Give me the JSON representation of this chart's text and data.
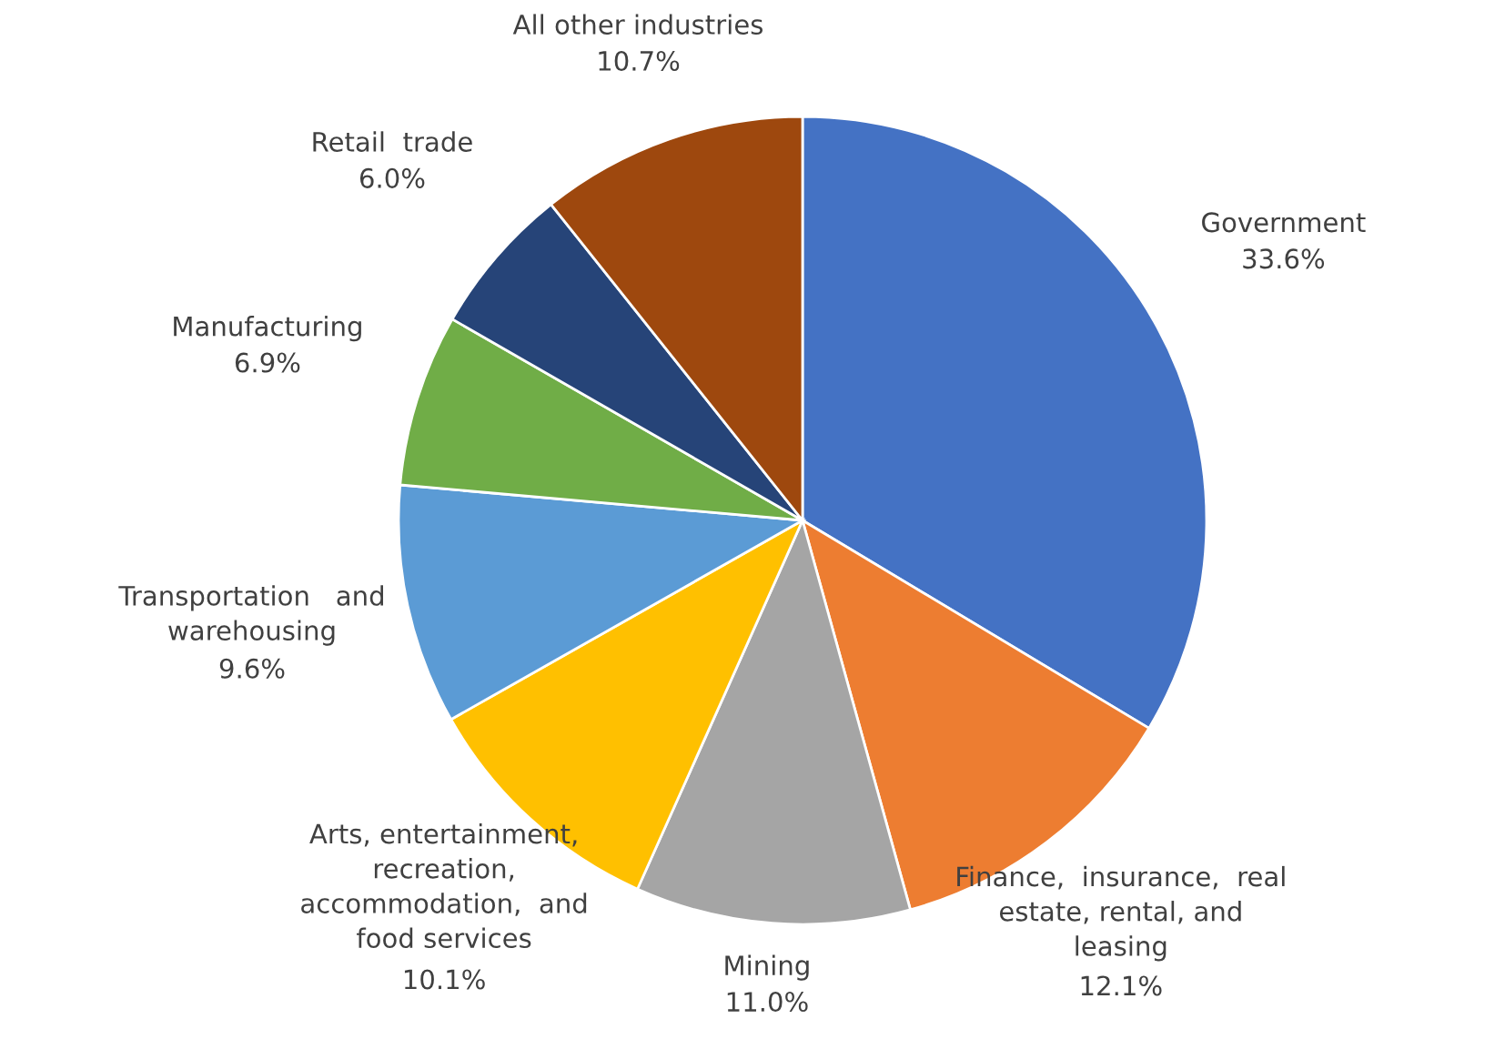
{
  "chart_data": {
    "type": "pie",
    "categories": [
      "Government",
      "Finance,  insurance,  real\nestate, rental, and\nleasing",
      "Mining",
      "Arts, entertainment,\nrecreation,\naccommodation,  and\nfood services",
      "Transportation   and\nwarehousing",
      "Manufacturing",
      "Retail  trade",
      "All other industries"
    ],
    "values": [
      33.6,
      12.1,
      11.0,
      10.1,
      9.6,
      6.9,
      6.0,
      10.7
    ],
    "colors": [
      "#4472c4",
      "#ed7d31",
      "#a5a5a5",
      "#ffc000",
      "#5b9bd5",
      "#70ad47",
      "#264478",
      "#9e480e"
    ],
    "value_labels": [
      "33.6%",
      "12.1%",
      "11.0%",
      "10.1%",
      "9.6%",
      "6.9%",
      "6.0%",
      "10.7%"
    ],
    "legend": false
  }
}
